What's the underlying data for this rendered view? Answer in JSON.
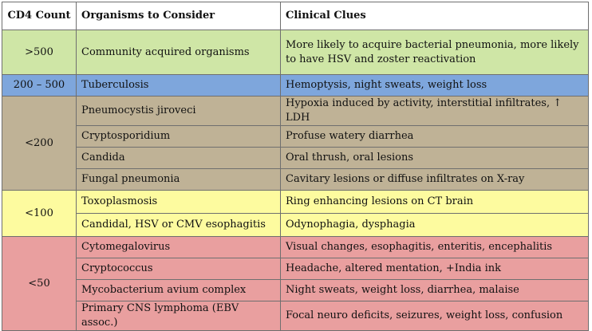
{
  "headers": {
    "cd4": "CD4 Count",
    "organisms": "Organisms to Consider",
    "clues": "Clinical Clues"
  },
  "groups": [
    {
      "count": ">500",
      "color": "#cfe6a6",
      "rows": [
        {
          "organism": "Community acquired organisms",
          "clue": "More likely to acquire bacterial pneumonia, more likely to have HSV and zoster reactivation"
        }
      ]
    },
    {
      "count": "200 – 500",
      "color": "#7ea6dc",
      "rows": [
        {
          "organism": "Tuberculosis",
          "clue": "Hemoptysis, night sweats, weight loss"
        }
      ]
    },
    {
      "count": "<200",
      "color": "#bfb296",
      "rows": [
        {
          "organism": "Pneumocystis jiroveci",
          "clue": "Hypoxia induced by activity, interstitial infiltrates, ↑ LDH"
        },
        {
          "organism": "Cryptosporidium",
          "clue": "Profuse watery diarrhea"
        },
        {
          "organism": "Candida",
          "clue": "Oral thrush, oral lesions"
        },
        {
          "organism": "Fungal pneumonia",
          "clue": "Cavitary lesions or diffuse infiltrates on X-ray"
        }
      ]
    },
    {
      "count": "<100",
      "color": "#fdfb9f",
      "rows": [
        {
          "organism": "Toxoplasmosis",
          "clue": "Ring enhancing lesions on CT brain"
        },
        {
          "organism": "Candidal, HSV or CMV esophagitis",
          "clue": "Odynophagia, dysphagia"
        }
      ]
    },
    {
      "count": "<50",
      "color": "#e99f9f",
      "rows": [
        {
          "organism": "Cytomegalovirus",
          "clue": "Visual changes, esophagitis, enteritis, encephalitis"
        },
        {
          "organism": "Cryptococcus",
          "clue": "Headache, altered mentation, +India ink"
        },
        {
          "organism": "Mycobacterium avium complex",
          "clue": "Night sweats, weight loss, diarrhea, malaise"
        },
        {
          "organism": "Primary CNS lymphoma (EBV assoc.)",
          "clue": "Focal neuro deficits, seizures, weight loss, confusion"
        }
      ]
    }
  ]
}
